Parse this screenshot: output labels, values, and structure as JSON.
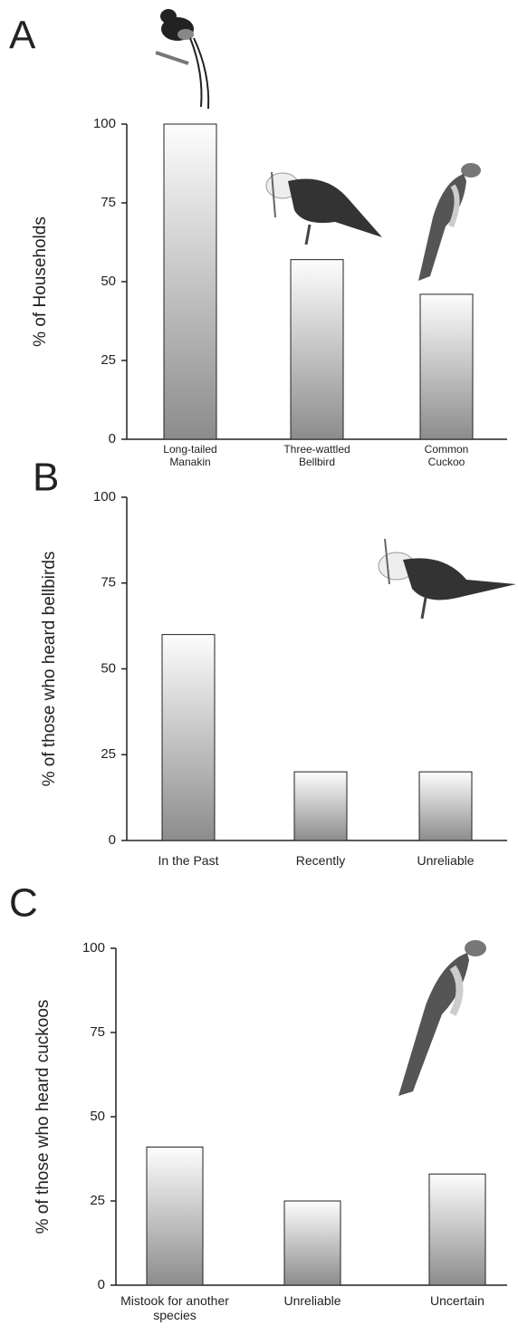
{
  "chart_data": [
    {
      "type": "bar",
      "label": "A",
      "y_label": "% of Households",
      "categories": [
        "Long-tailed Manakin",
        "Three-wattled Bellbird",
        "Common Cuckoo"
      ],
      "values": [
        100,
        57,
        46
      ],
      "ylim": [
        0,
        100
      ],
      "yticks": [
        0,
        25,
        50,
        75,
        100
      ]
    },
    {
      "type": "bar",
      "label": "B",
      "y_label": "% of those who heard bellbirds",
      "categories": [
        "In the Past",
        "Recently",
        "Unreliable"
      ],
      "values": [
        60,
        20,
        20
      ],
      "ylim": [
        0,
        100
      ],
      "yticks": [
        0,
        25,
        50,
        75,
        100
      ]
    },
    {
      "type": "bar",
      "label": "C",
      "y_label": "% of those who heard cuckoos",
      "categories": [
        "Mistook for another species",
        "Unreliable",
        "Uncertain"
      ],
      "values": [
        41,
        25,
        33
      ],
      "ylim": [
        0,
        100
      ],
      "yticks": [
        0,
        25,
        50,
        75,
        100
      ]
    }
  ]
}
